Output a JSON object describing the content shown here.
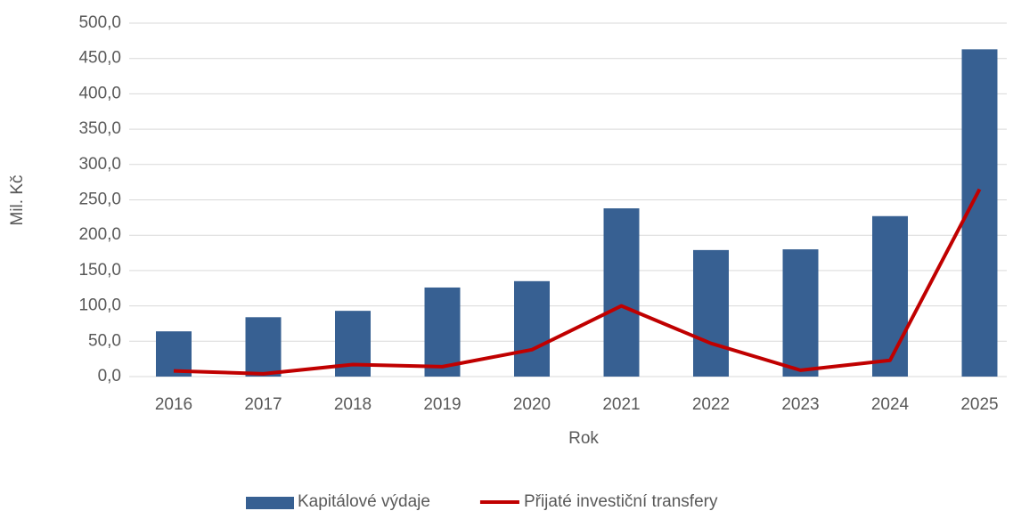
{
  "chart_data": {
    "type": "bar_line",
    "x_label": "Rok",
    "y_label": "Mil. Kč",
    "categories": [
      "2016",
      "2017",
      "2018",
      "2019",
      "2020",
      "2021",
      "2022",
      "2023",
      "2024",
      "2025"
    ],
    "series": [
      {
        "name": "Kapitálové výdaje",
        "type": "bar",
        "color": "#376092",
        "values": [
          64,
          84,
          93,
          126,
          135,
          238,
          179,
          180,
          227,
          463
        ]
      },
      {
        "name": "Přijaté investiční transfery",
        "type": "line",
        "color": "#c00000",
        "values": [
          8,
          4,
          17,
          14,
          38,
          100,
          47,
          9,
          23,
          265
        ]
      }
    ],
    "ylim": [
      0,
      500
    ],
    "yticks": [
      {
        "value": 0,
        "label": "0,0"
      },
      {
        "value": 50,
        "label": "50,0"
      },
      {
        "value": 100,
        "label": "100,0"
      },
      {
        "value": 150,
        "label": "150,0"
      },
      {
        "value": 200,
        "label": "200,0"
      },
      {
        "value": 250,
        "label": "250,0"
      },
      {
        "value": 300,
        "label": "300,0"
      },
      {
        "value": 350,
        "label": "350,0"
      },
      {
        "value": 400,
        "label": "400,0"
      },
      {
        "value": 450,
        "label": "450,0"
      },
      {
        "value": 500,
        "label": "500,0"
      }
    ],
    "grid": true
  }
}
